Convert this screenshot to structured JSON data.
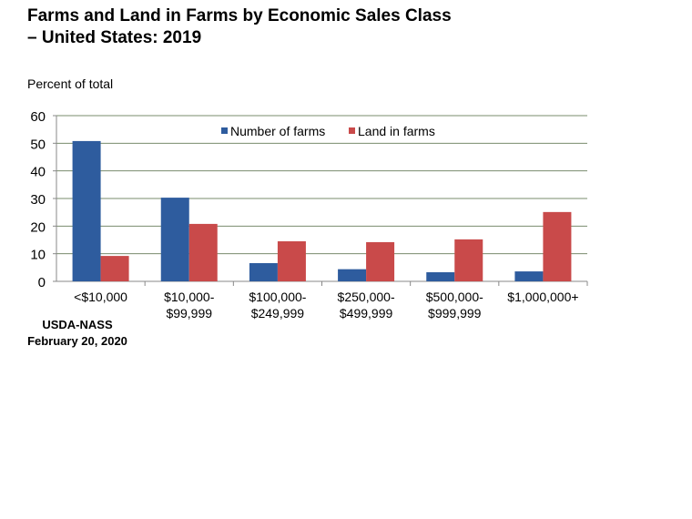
{
  "chart_data": {
    "type": "bar",
    "title": "Farms and Land in Farms by Economic Sales Class – United States: 2019",
    "ylabel": "Percent of total",
    "xlabel": "",
    "ylim": [
      0,
      60
    ],
    "yticks": [
      0,
      10,
      20,
      30,
      40,
      50,
      60
    ],
    "grid": true,
    "legend": "top-center",
    "categories": [
      [
        "<$10,000"
      ],
      [
        "$10,000-",
        "$99,999"
      ],
      [
        "$100,000-",
        "$249,999"
      ],
      [
        "$250,000-",
        "$499,999"
      ],
      [
        "$500,000-",
        "$999,999"
      ],
      [
        "$1,000,000+"
      ]
    ],
    "series": [
      {
        "name": "Number of farms",
        "color": "#2E5C9E",
        "values": [
          50.8,
          30.3,
          6.6,
          4.4,
          3.3,
          3.6
        ]
      },
      {
        "name": "Land in farms",
        "color": "#C94A4A",
        "values": [
          9.2,
          20.8,
          14.5,
          14.2,
          15.2,
          25.1
        ]
      }
    ]
  },
  "title_lines": [
    "Farms and Land in Farms by Economic Sales Class",
    "– United States: 2019"
  ],
  "source": {
    "org": "USDA-NASS",
    "date": "February 20, 2020"
  }
}
